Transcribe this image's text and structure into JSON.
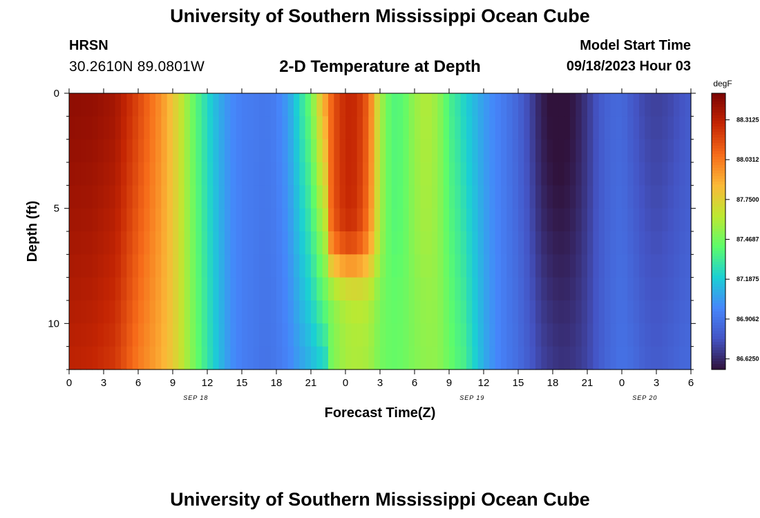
{
  "header": {
    "title": "University of Southern Mississippi Ocean Cube",
    "station": "HRSN",
    "coords": "30.2610N  89.0801W",
    "subtitle": "2-D Temperature at Depth",
    "model_start_label": "Model Start Time",
    "model_start_value": "09/18/2023 Hour 03"
  },
  "footer": {
    "title": "University of Southern Mississippi Ocean Cube"
  },
  "chart_data": {
    "type": "heatmap",
    "xlabel": "Forecast Time(Z)",
    "ylabel": "Depth (ft)",
    "x_tick_labels": [
      "0",
      "3",
      "6",
      "9",
      "12",
      "15",
      "18",
      "21",
      "0",
      "3",
      "6",
      "9",
      "12",
      "15",
      "18",
      "21",
      "0",
      "3",
      "6"
    ],
    "date_labels": [
      {
        "label": "SEP 18",
        "hour_index": 11
      },
      {
        "label": "SEP 19",
        "hour_index": 35
      },
      {
        "label": "SEP 20",
        "hour_index": 50
      }
    ],
    "y_ticks": [
      0,
      5,
      10
    ],
    "ylim": [
      0,
      12
    ],
    "x_hours": [
      0,
      54
    ],
    "colorbar": {
      "unit": "degF",
      "tick_labels": [
        "88.3125",
        "88.0312",
        "87.7500",
        "87.4687",
        "87.1875",
        "86.9062",
        "86.6250"
      ],
      "range": [
        86.55,
        88.5
      ],
      "colors": [
        "#30123b",
        "#4454c4",
        "#4686fb",
        "#1bcfd4",
        "#5dfc6b",
        "#bde831",
        "#fbb938",
        "#f66b19",
        "#c42503",
        "#7a0403"
      ]
    },
    "time_profile_surface": [
      [
        0,
        88.44
      ],
      [
        2,
        88.43
      ],
      [
        4,
        88.38
      ],
      [
        6,
        88.18
      ],
      [
        8,
        87.96
      ],
      [
        9,
        87.8
      ],
      [
        10,
        87.6
      ],
      [
        11,
        87.4
      ],
      [
        12,
        87.24
      ],
      [
        13,
        87.1
      ],
      [
        14,
        87.0
      ],
      [
        15,
        86.95
      ],
      [
        17,
        86.92
      ],
      [
        18,
        86.95
      ],
      [
        19,
        87.05
      ],
      [
        20,
        87.25
      ],
      [
        21,
        87.45
      ],
      [
        22,
        87.85
      ],
      [
        23,
        88.15
      ],
      [
        24,
        88.28
      ],
      [
        25,
        88.27
      ],
      [
        26,
        88.1
      ],
      [
        27,
        87.6
      ],
      [
        28,
        87.38
      ],
      [
        29,
        87.4
      ],
      [
        30,
        87.55
      ],
      [
        31,
        87.62
      ],
      [
        32,
        87.55
      ],
      [
        33,
        87.35
      ],
      [
        34,
        87.25
      ],
      [
        35,
        87.15
      ],
      [
        36,
        87.05
      ],
      [
        37,
        86.98
      ],
      [
        38,
        86.92
      ],
      [
        39,
        86.85
      ],
      [
        40,
        86.75
      ],
      [
        41,
        86.63
      ],
      [
        42,
        86.58
      ],
      [
        43,
        86.58
      ],
      [
        44,
        86.62
      ],
      [
        45,
        86.7
      ],
      [
        46,
        86.8
      ],
      [
        47,
        86.85
      ],
      [
        48,
        86.86
      ],
      [
        49,
        86.78
      ],
      [
        50,
        86.72
      ],
      [
        51,
        86.7
      ],
      [
        52,
        86.72
      ],
      [
        53,
        86.76
      ],
      [
        54,
        86.8
      ]
    ],
    "time_profile_bottom": [
      [
        0,
        88.3
      ],
      [
        2,
        88.28
      ],
      [
        4,
        88.22
      ],
      [
        6,
        88.02
      ],
      [
        8,
        87.88
      ],
      [
        9,
        87.78
      ],
      [
        10,
        87.62
      ],
      [
        11,
        87.45
      ],
      [
        12,
        87.3
      ],
      [
        13,
        87.15
      ],
      [
        14,
        87.02
      ],
      [
        15,
        86.95
      ],
      [
        17,
        86.9
      ],
      [
        18,
        86.92
      ],
      [
        19,
        86.97
      ],
      [
        20,
        87.05
      ],
      [
        21,
        87.12
      ],
      [
        22,
        87.2
      ],
      [
        23,
        87.28
      ],
      [
        24,
        87.35
      ],
      [
        26,
        87.4
      ],
      [
        28,
        87.45
      ],
      [
        30,
        87.48
      ],
      [
        32,
        87.52
      ],
      [
        33,
        87.48
      ],
      [
        34,
        87.4
      ],
      [
        35,
        87.25
      ],
      [
        36,
        87.1
      ],
      [
        37,
        87.0
      ],
      [
        38,
        86.93
      ],
      [
        39,
        86.88
      ],
      [
        40,
        86.8
      ],
      [
        41,
        86.72
      ],
      [
        42,
        86.68
      ],
      [
        43,
        86.66
      ],
      [
        44,
        86.68
      ],
      [
        45,
        86.72
      ],
      [
        46,
        86.8
      ],
      [
        47,
        86.86
      ],
      [
        48,
        86.9
      ],
      [
        49,
        86.87
      ],
      [
        50,
        86.82
      ],
      [
        51,
        86.8
      ],
      [
        52,
        86.82
      ],
      [
        53,
        86.85
      ],
      [
        54,
        86.86
      ]
    ],
    "warm_layer_peak": {
      "hour": 25,
      "surface_degF": 88.28,
      "bottom_boundary_depth_ft": 7.5,
      "boundary_hour_end": 24.5
    },
    "cold_core_min": {
      "hour": 42.5,
      "degF": 86.58,
      "depth_ft": 2
    }
  }
}
